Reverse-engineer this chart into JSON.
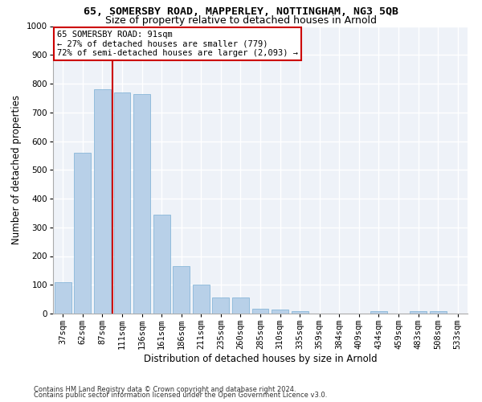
{
  "title1": "65, SOMERSBY ROAD, MAPPERLEY, NOTTINGHAM, NG3 5QB",
  "title2": "Size of property relative to detached houses in Arnold",
  "xlabel": "Distribution of detached houses by size in Arnold",
  "ylabel": "Number of detached properties",
  "bar_color": "#b8d0e8",
  "bar_edge_color": "#7aafd4",
  "categories": [
    "37sqm",
    "62sqm",
    "87sqm",
    "111sqm",
    "136sqm",
    "161sqm",
    "186sqm",
    "211sqm",
    "235sqm",
    "260sqm",
    "285sqm",
    "310sqm",
    "335sqm",
    "359sqm",
    "384sqm",
    "409sqm",
    "434sqm",
    "459sqm",
    "483sqm",
    "508sqm",
    "533sqm"
  ],
  "values": [
    110,
    560,
    780,
    770,
    765,
    345,
    165,
    100,
    57,
    55,
    18,
    15,
    8,
    0,
    0,
    0,
    8,
    0,
    8,
    8,
    0
  ],
  "ylim": [
    0,
    1000
  ],
  "yticks": [
    0,
    100,
    200,
    300,
    400,
    500,
    600,
    700,
    800,
    900,
    1000
  ],
  "property_label": "65 SOMERSBY ROAD: 91sqm",
  "annotation_line1": "← 27% of detached houses are smaller (779)",
  "annotation_line2": "72% of semi-detached houses are larger (2,093) →",
  "vline_bar_index": 2,
  "background_color": "#eef2f8",
  "grid_color": "#ffffff",
  "footer1": "Contains HM Land Registry data © Crown copyright and database right 2024.",
  "footer2": "Contains public sector information licensed under the Open Government Licence v3.0.",
  "annotation_box_color": "#ffffff",
  "annotation_box_edge": "#cc0000",
  "vline_color": "#cc0000",
  "title1_fontsize": 9.5,
  "title2_fontsize": 9,
  "xlabel_fontsize": 8.5,
  "ylabel_fontsize": 8.5,
  "footer_fontsize": 6,
  "tick_fontsize": 7.5,
  "annot_fontsize": 7.5
}
